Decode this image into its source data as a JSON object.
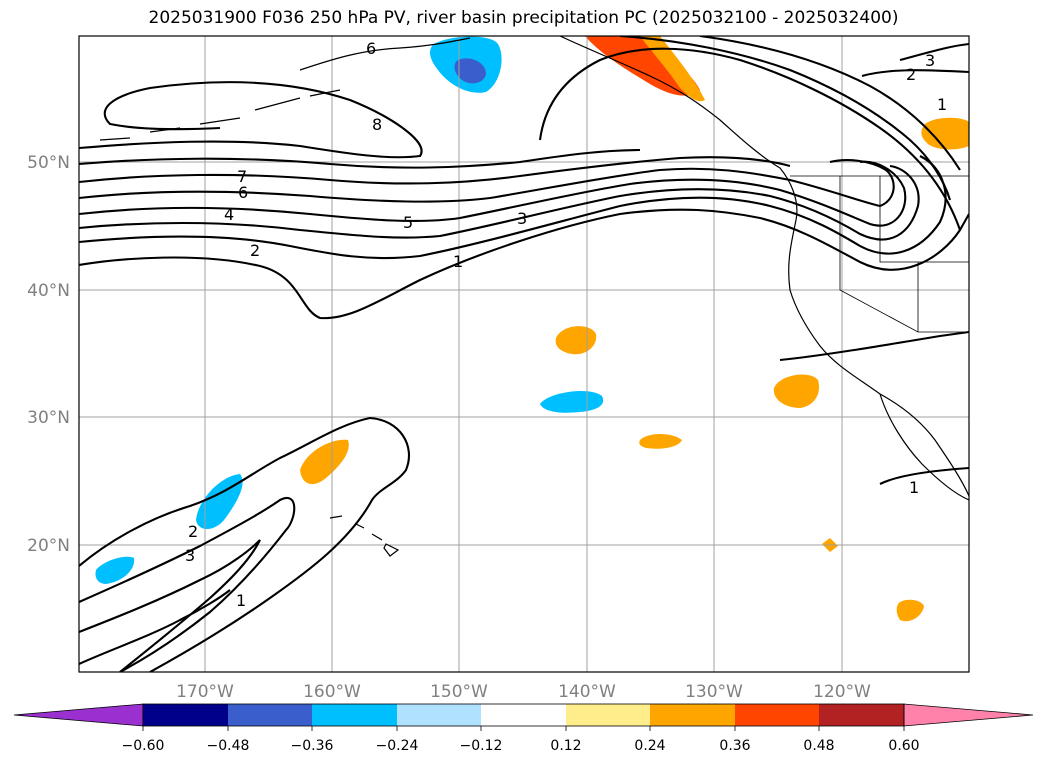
{
  "title": "2025031900 F036 250 hPa PV, river basin precipitation PC (2025032100 - 2025032400)",
  "map": {
    "lat_ticks": [
      "50°N",
      "40°N",
      "30°N",
      "20°N"
    ],
    "lon_ticks": [
      "170°W",
      "160°W",
      "150°W",
      "140°W",
      "130°W",
      "120°W"
    ],
    "contour_labels": [
      "6",
      "8",
      "7",
      "6",
      "4",
      "2",
      "5",
      "3",
      "1",
      "2",
      "3",
      "1",
      "1",
      "2",
      "3",
      "1"
    ],
    "contour_color": "#000000",
    "grid_color": "#a0a0a0"
  },
  "colorbar": {
    "colors": [
      "#9b30d0",
      "#00008b",
      "#3a5fcd",
      "#00bfff",
      "#b0e2ff",
      "#ffffff",
      "#ffec8b",
      "#ffa500",
      "#ff4500",
      "#b22222",
      "#ff82ab"
    ],
    "tick_labels": [
      "−0.60",
      "−0.48",
      "−0.36",
      "−0.24",
      "−0.12",
      "0.12",
      "0.24",
      "0.36",
      "0.48",
      "0.60"
    ]
  }
}
